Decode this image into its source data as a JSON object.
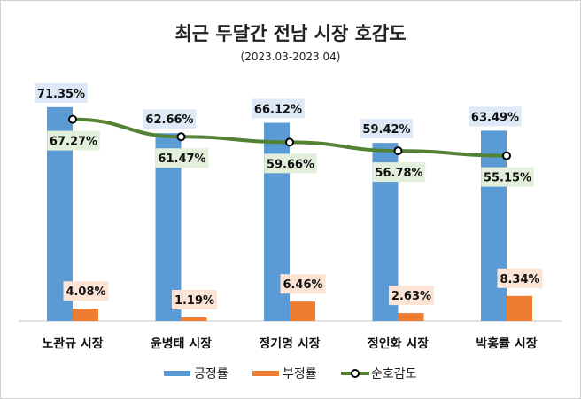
{
  "chart_data": {
    "type": "bar",
    "title": "최근 두달간 전남 시장 호감도",
    "subtitle": "(2023.03-2023.04)",
    "categories": [
      "노관규 시장",
      "윤병태 시장",
      "정기명 시장",
      "정인화 시장",
      "박홍률 시장"
    ],
    "series": [
      {
        "name": "긍정률",
        "type": "bar",
        "color": "#5b9bd5",
        "label_bg": "#dde9f6",
        "values": [
          71.35,
          62.66,
          66.12,
          59.42,
          63.49
        ],
        "labels": [
          "71.35%",
          "62.66%",
          "66.12%",
          "59.42%",
          "63.49%"
        ]
      },
      {
        "name": "부정률",
        "type": "bar",
        "color": "#ed7d31",
        "label_bg": "#fbe4d6",
        "values": [
          4.08,
          1.19,
          6.46,
          2.63,
          8.34
        ],
        "labels": [
          "4.08%",
          "1.19%",
          "6.46%",
          "2.63%",
          "8.34%"
        ]
      },
      {
        "name": "순호감도",
        "type": "line",
        "color": "#548235",
        "label_bg": "#e2efda",
        "values": [
          67.27,
          61.47,
          59.66,
          56.78,
          55.15
        ],
        "labels": [
          "67.27%",
          "61.47%",
          "59.66%",
          "56.78%",
          "55.15%"
        ]
      }
    ],
    "ylim": [
      0,
      100
    ],
    "grid": false,
    "legend": "bottom"
  }
}
